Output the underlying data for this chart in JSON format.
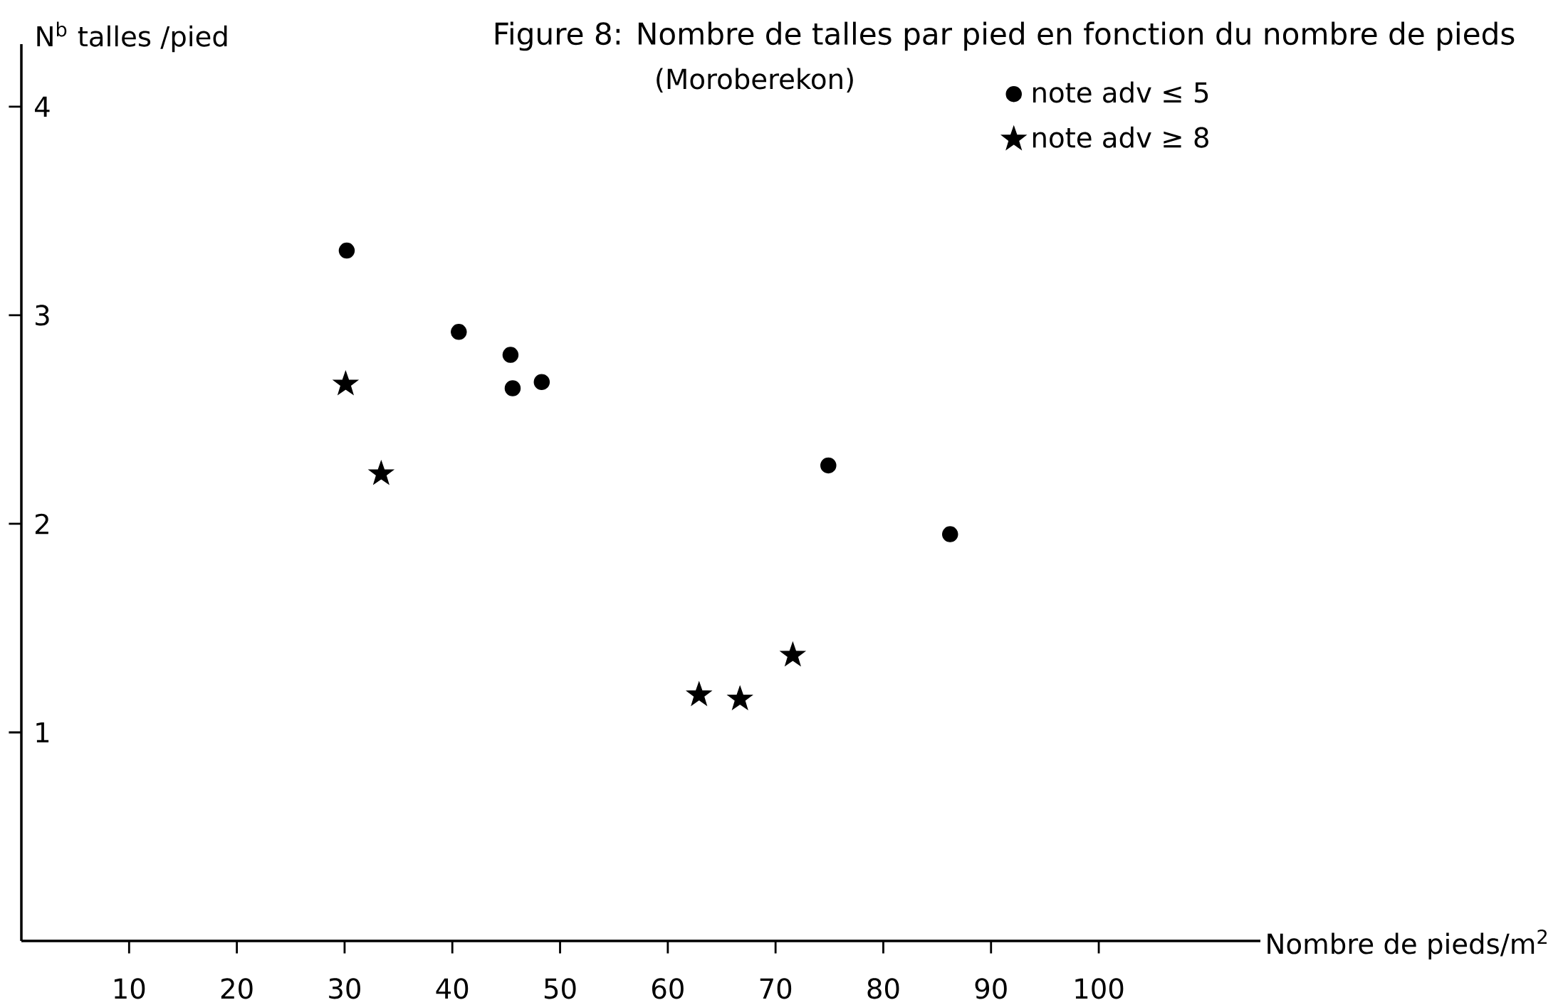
{
  "chart_data": {
    "type": "scatter",
    "title": "Figure 8: Nombre de talles par pied en fonction du nombre de pieds",
    "subtitle": "(Moroberekon)",
    "xlabel": "Nombre de pieds/m$^{2}$",
    "ylabel": "N$^{b}$ talles /pied",
    "xlim": [
      0,
      115
    ],
    "ylim": [
      0,
      4.3
    ],
    "xticks": [
      10,
      20,
      30,
      40,
      50,
      60,
      70,
      80,
      90,
      100
    ],
    "yticks": [
      1,
      2,
      3,
      4
    ],
    "grid": false,
    "legend": "top right",
    "series": [
      {
        "name": "note adv ≤ 5",
        "color": "#000000",
        "marker": "circle",
        "x": [
          30.2,
          40.6,
          45.4,
          45.6,
          48.3,
          74.9,
          86.2
        ],
        "values": [
          3.31,
          2.92,
          2.81,
          2.65,
          2.68,
          2.28,
          1.95
        ]
      },
      {
        "name": "note adv ≥ 8",
        "color": "#000000",
        "marker": "star",
        "x": [
          30.1,
          33.4,
          62.9,
          66.7,
          71.6
        ],
        "values": [
          2.67,
          2.24,
          1.18,
          1.16,
          1.37
        ]
      }
    ]
  }
}
